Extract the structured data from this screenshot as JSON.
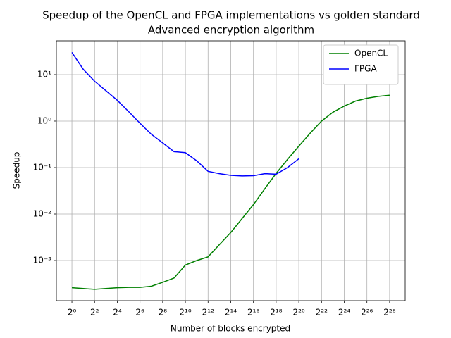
{
  "chart_data": {
    "type": "line",
    "title": "Speedup of the OpenCL and FPGA implementations vs golden standard",
    "subtitle": "Advanced encryption algorithm",
    "x_label": "Number of blocks encrypted",
    "y_label": "Speedup",
    "x": [
      1,
      2,
      4,
      8,
      16,
      32,
      64,
      128,
      256,
      512,
      1024,
      2048,
      4096,
      8192,
      16384,
      32768,
      65536,
      131072,
      262144,
      524288,
      1048576,
      2097152,
      4194304,
      8388608,
      16777216,
      33554432,
      67108864,
      134217728,
      268435456
    ],
    "series": [
      {
        "name": "OpenCL",
        "color": "#008000",
        "values": [
          0.00026,
          0.00025,
          0.00024,
          0.00025,
          0.00026,
          0.000265,
          0.000265,
          0.00028,
          0.00034,
          0.00042,
          0.0008,
          0.001,
          0.0012,
          0.0022,
          0.004,
          0.008,
          0.016,
          0.035,
          0.075,
          0.15,
          0.29,
          0.55,
          1.0,
          1.55,
          2.1,
          2.7,
          3.1,
          3.4,
          3.6
        ]
      },
      {
        "name": "FPGA",
        "color": "#0000ff",
        "values": [
          30,
          13,
          7.2,
          4.5,
          2.8,
          1.6,
          0.9,
          0.52,
          0.34,
          0.22,
          0.21,
          0.14,
          0.083,
          0.074,
          0.068,
          0.066,
          0.067,
          0.074,
          0.072,
          0.1,
          0.155,
          null,
          null,
          null,
          null,
          null,
          null,
          null,
          null
        ]
      }
    ],
    "x_log_base": 2,
    "y_log_base": 10,
    "xlim": [
      0.387,
      695000000
    ],
    "ylim": [
      0.000137,
      53.3
    ],
    "xticks": [
      {
        "value": 1,
        "label": "2⁰"
      },
      {
        "value": 4,
        "label": "2²"
      },
      {
        "value": 16,
        "label": "2⁴"
      },
      {
        "value": 64,
        "label": "2⁶"
      },
      {
        "value": 256,
        "label": "2⁸"
      },
      {
        "value": 1024,
        "label": "2¹⁰"
      },
      {
        "value": 4096,
        "label": "2¹²"
      },
      {
        "value": 16384,
        "label": "2¹⁴"
      },
      {
        "value": 65536,
        "label": "2¹⁶"
      },
      {
        "value": 262144,
        "label": "2¹⁸"
      },
      {
        "value": 1048576,
        "label": "2²⁰"
      },
      {
        "value": 4194304,
        "label": "2²²"
      },
      {
        "value": 16777216,
        "label": "2²⁴"
      },
      {
        "value": 67108864,
        "label": "2²⁶"
      },
      {
        "value": 268435456,
        "label": "2²⁸"
      }
    ],
    "yticks": [
      {
        "value": 0.001,
        "label": "10⁻³"
      },
      {
        "value": 0.01,
        "label": "10⁻²"
      },
      {
        "value": 0.1,
        "label": "10⁻¹"
      },
      {
        "value": 1,
        "label": "10⁰"
      },
      {
        "value": 10,
        "label": "10¹"
      }
    ],
    "grid": true,
    "legend": "upper right"
  }
}
